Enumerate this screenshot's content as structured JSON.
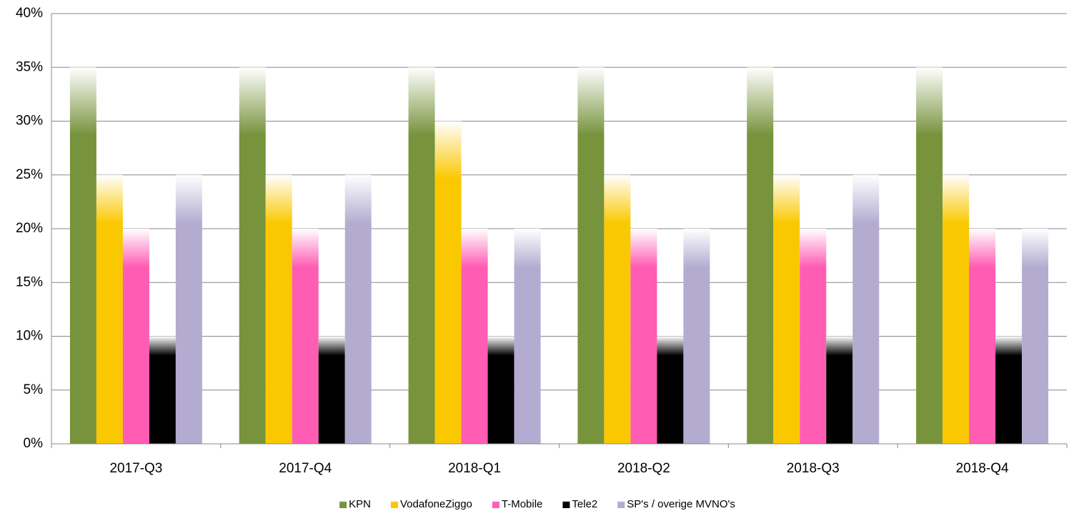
{
  "chart_data": {
    "type": "bar",
    "categories": [
      "2017-Q3",
      "2017-Q4",
      "2018-Q1",
      "2018-Q2",
      "2018-Q3",
      "2018-Q4"
    ],
    "series": [
      {
        "name": "KPN",
        "color": "#77933c",
        "values": [
          35,
          35,
          35,
          35,
          35,
          35
        ]
      },
      {
        "name": "VodafoneZiggo",
        "color": "#fac800",
        "values": [
          25,
          25,
          30,
          25,
          25,
          25
        ]
      },
      {
        "name": "T-Mobile",
        "color": "#ff5cb3",
        "values": [
          20,
          20,
          20,
          20,
          20,
          20
        ]
      },
      {
        "name": "Tele2",
        "color": "#000000",
        "values": [
          10,
          10,
          10,
          10,
          10,
          10
        ]
      },
      {
        "name": "SP's / overige MVNO's",
        "color": "#b3acd0",
        "values": [
          25,
          25,
          20,
          20,
          25,
          20
        ]
      }
    ],
    "ylim": [
      0,
      40
    ],
    "yticks": [
      {
        "value": 0,
        "label": "0%"
      },
      {
        "value": 5,
        "label": "5%"
      },
      {
        "value": 10,
        "label": "10%"
      },
      {
        "value": 15,
        "label": "15%"
      },
      {
        "value": 20,
        "label": "20%"
      },
      {
        "value": 25,
        "label": "25%"
      },
      {
        "value": 30,
        "label": "30%"
      },
      {
        "value": 35,
        "label": "35%"
      },
      {
        "value": 40,
        "label": "40%"
      }
    ],
    "grid": true,
    "legend": "bottom"
  }
}
